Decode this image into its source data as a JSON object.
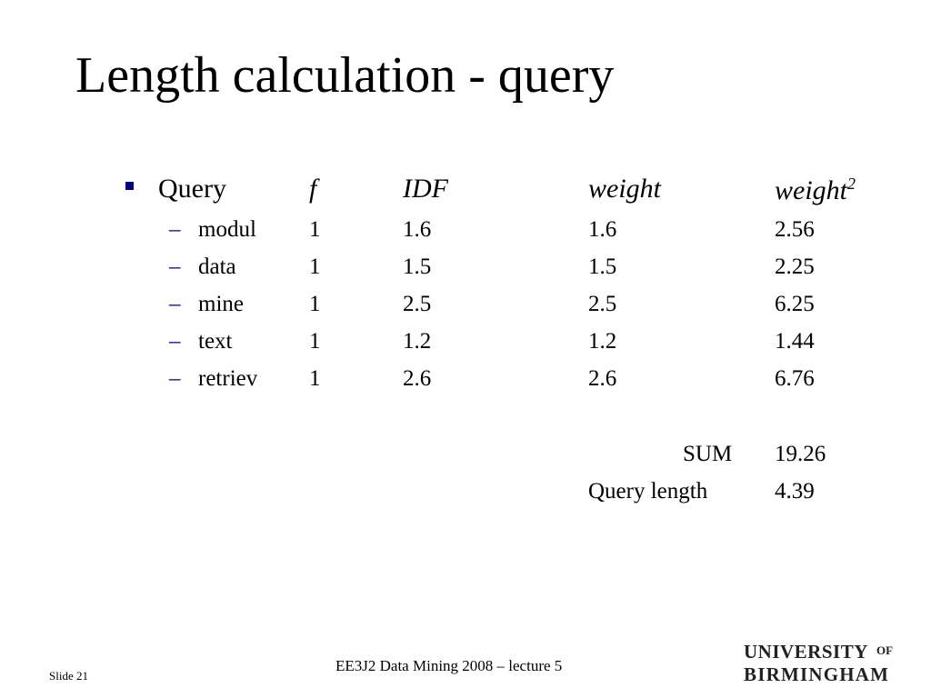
{
  "slide": {
    "title": "Length calculation - query"
  },
  "table": {
    "headers": {
      "term": "Query",
      "f": "f",
      "idf": "IDF",
      "weight": "weight",
      "weight_sq": "weight",
      "weight_sq_exp": "2"
    },
    "rows": [
      {
        "term": "modul",
        "f": "1",
        "idf": "1.6",
        "weight": "1.6",
        "weight_sq": "2.56"
      },
      {
        "term": "data",
        "f": "1",
        "idf": "1.5",
        "weight": "1.5",
        "weight_sq": "2.25"
      },
      {
        "term": "mine",
        "f": "1",
        "idf": "2.5",
        "weight": "2.5",
        "weight_sq": "6.25"
      },
      {
        "term": "text",
        "f": "1",
        "idf": "1.2",
        "weight": "1.2",
        "weight_sq": "1.44"
      },
      {
        "term": "retriev",
        "f": "1",
        "idf": "2.6",
        "weight": "2.6",
        "weight_sq": "6.76"
      }
    ],
    "sum_label": "SUM",
    "sum_value": "19.26",
    "length_label": "Query length",
    "length_value": "4.39",
    "dash": "–"
  },
  "footer": {
    "course": "EE3J2 Data Mining 2008 – lecture 5",
    "slide_number": "Slide 21"
  },
  "logo": {
    "line1": "UNIVERSITY",
    "of": "OF",
    "line2": "BIRMINGHAM"
  },
  "colors": {
    "bullet": "#000080",
    "text": "#000000"
  }
}
